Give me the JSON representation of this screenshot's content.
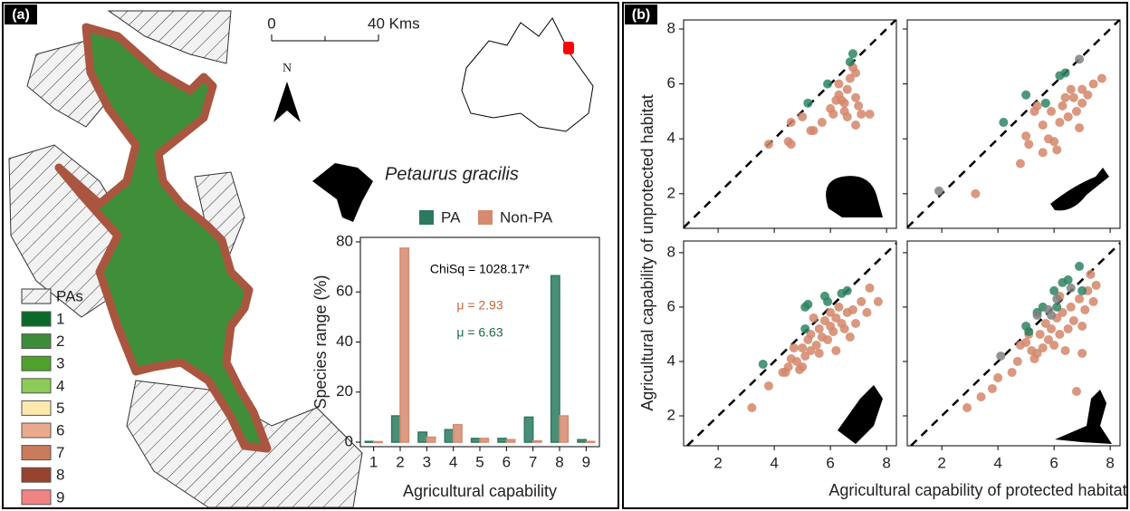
{
  "panel_a": {
    "label": "(a)",
    "scale_labels": [
      "0",
      "40 Kms"
    ],
    "north": "N",
    "legend_title": "PAs",
    "classes": [
      "1",
      "2",
      "3",
      "4",
      "5",
      "6",
      "7",
      "8",
      "9"
    ],
    "class_colors": [
      "#0b6a2a",
      "#3d8c3a",
      "#4fa12c",
      "#8bcb58",
      "#fbe9ad",
      "#e9ab8c",
      "#c97c5c",
      "#974330",
      "#f38383"
    ],
    "species": "Petaurus gracilis"
  },
  "panel_b": {
    "label": "(b)",
    "x_label": "Agricultural capability of protected habitat",
    "y_label": "Agricultural capability of unprotected habitat"
  },
  "chart_data": [
    {
      "type": "bar",
      "categories": [
        "1",
        "2",
        "3",
        "4",
        "5",
        "6",
        "7",
        "8",
        "9"
      ],
      "series": [
        {
          "name": "PA",
          "color": "#2b7a5f",
          "values": [
            0.3,
            10.5,
            4,
            5,
            1.5,
            1.5,
            10,
            66.5,
            1
          ]
        },
        {
          "name": "Non-PA",
          "color": "#d68a6f",
          "values": [
            0.2,
            77.5,
            2,
            7,
            1.5,
            1,
            0.5,
            10.5,
            0.3
          ]
        }
      ],
      "ylim": [
        -1.8,
        81.8
      ],
      "yticks": [
        0,
        20,
        40,
        60,
        80
      ],
      "x_label": "Agricultural capability",
      "y_label": "Species range (%)",
      "annotations": [
        {
          "text": "ChiSq = 1028.17*",
          "color": "#000000"
        },
        {
          "text": "μ = 2.93",
          "color": "#c8663f"
        },
        {
          "text": "μ = 6.63",
          "color": "#1e6b48"
        }
      ]
    },
    {
      "type": "scatter",
      "xlim": [
        0.77,
        8.35
      ],
      "ylim": [
        0.74,
        8.33
      ],
      "xticks": [
        2,
        4,
        6,
        8
      ],
      "yticks": [
        2,
        4,
        6,
        8
      ],
      "xtick_labels": false,
      "ytick_labels": true,
      "series": [
        {
          "color": "#d4866a",
          "x": [
            3.8,
            4.5,
            4.6,
            4.6,
            5.0,
            5.4,
            5.7,
            6.0,
            6.1,
            6.2,
            6.3,
            6.4,
            6.5,
            6.6,
            6.7,
            6.8,
            6.9,
            6.6,
            7.0,
            7.1,
            7.4,
            6.9,
            6.5,
            6.3,
            6.9,
            5.3
          ],
          "values": [
            3.8,
            3.9,
            3.8,
            4.6,
            4.8,
            4.3,
            4.6,
            5.1,
            4.9,
            5.4,
            5.6,
            5.4,
            5.0,
            5.8,
            6.2,
            6.6,
            6.4,
            4.8,
            5.2,
            4.9,
            4.9,
            4.5,
            5.3,
            6.0,
            5.5,
            4.3
          ]
        },
        {
          "color": "#2e8463",
          "x": [
            5.9,
            6.8,
            6.7,
            5.2
          ],
          "values": [
            6.0,
            7.1,
            6.8,
            5.3
          ]
        }
      ]
    },
    {
      "type": "scatter",
      "xlim": [
        0.77,
        8.35
      ],
      "ylim": [
        0.74,
        8.33
      ],
      "xticks": [
        2,
        4,
        6,
        8
      ],
      "yticks": [
        2,
        4,
        6,
        8
      ],
      "xtick_labels": false,
      "ytick_labels": false,
      "series": [
        {
          "color": "#d4866a",
          "x": [
            3.2,
            4.8,
            5.1,
            5.0,
            5.3,
            5.6,
            5.8,
            5.6,
            6.0,
            6.2,
            6.3,
            6.4,
            6.6,
            6.7,
            6.8,
            6.9,
            7.0,
            7.2,
            7.4,
            7.7,
            6.1,
            6.5,
            5.9,
            7.0,
            5.4
          ],
          "values": [
            2.0,
            3.1,
            3.8,
            4.1,
            5.0,
            4.5,
            4.0,
            3.5,
            3.9,
            4.6,
            5.2,
            5.5,
            5.8,
            5.5,
            5.0,
            4.4,
            5.8,
            5.6,
            6.0,
            6.2,
            3.6,
            4.8,
            5.0,
            5.3,
            5.2
          ]
        },
        {
          "color": "#2e8463",
          "x": [
            4.2,
            5.0,
            5.7,
            6.2,
            6.4
          ],
          "values": [
            4.6,
            5.6,
            5.3,
            6.3,
            6.4
          ]
        },
        {
          "color": "#808080",
          "x": [
            1.9,
            6.9
          ],
          "values": [
            2.1,
            6.9
          ]
        }
      ]
    },
    {
      "type": "scatter",
      "xlim": [
        0.77,
        8.35
      ],
      "ylim": [
        0.9,
        8.43
      ],
      "xticks": [
        2,
        4,
        6,
        8
      ],
      "yticks": [
        2,
        4,
        6,
        8
      ],
      "xtick_labels": true,
      "ytick_labels": true,
      "series": [
        {
          "color": "#d4866a",
          "x": [
            3.2,
            3.8,
            4.4,
            4.5,
            4.6,
            4.7,
            4.8,
            4.9,
            5.0,
            5.1,
            5.2,
            5.3,
            5.3,
            5.5,
            5.6,
            5.7,
            5.8,
            5.9,
            6.0,
            6.0,
            6.1,
            6.2,
            6.2,
            6.3,
            6.4,
            6.5,
            6.6,
            6.7,
            6.8,
            7.1,
            7.3,
            7.4,
            7.7,
            5.4,
            4.3,
            5.6,
            6.9,
            5.0
          ],
          "values": [
            2.3,
            3.1,
            3.6,
            3.8,
            4.1,
            4.5,
            4.0,
            3.7,
            4.5,
            4.2,
            4.8,
            4.4,
            5.0,
            4.6,
            5.2,
            4.9,
            5.5,
            4.8,
            5.3,
            5.8,
            5.1,
            5.6,
            4.4,
            6.0,
            5.4,
            5.2,
            5.8,
            4.9,
            5.9,
            6.2,
            5.8,
            6.7,
            6.2,
            5.6,
            3.6,
            4.3,
            5.4,
            3.8
          ]
        },
        {
          "color": "#2e8463",
          "x": [
            3.6,
            5.1,
            5.2,
            5.1,
            5.9,
            6.4,
            6.6,
            5.8
          ],
          "values": [
            3.9,
            6.0,
            6.1,
            5.2,
            6.2,
            6.5,
            6.6,
            6.4
          ]
        }
      ]
    },
    {
      "type": "scatter",
      "xlim": [
        0.77,
        8.35
      ],
      "ylim": [
        0.9,
        8.43
      ],
      "xticks": [
        2,
        4,
        6,
        8
      ],
      "yticks": [
        2,
        4,
        6,
        8
      ],
      "xtick_labels": true,
      "ytick_labels": false,
      "series": [
        {
          "color": "#d4866a",
          "x": [
            2.9,
            3.4,
            3.8,
            4.0,
            4.5,
            4.7,
            4.8,
            5.0,
            5.1,
            5.2,
            5.3,
            5.4,
            5.5,
            5.6,
            5.7,
            5.8,
            5.9,
            6.0,
            6.1,
            6.2,
            6.3,
            6.4,
            6.5,
            6.6,
            6.7,
            6.8,
            6.9,
            7.0,
            7.1,
            7.2,
            7.3,
            7.4,
            7.5,
            6.2,
            7.0
          ],
          "values": [
            2.3,
            2.7,
            3.0,
            3.4,
            3.6,
            4.0,
            4.6,
            4.7,
            5.0,
            4.4,
            4.1,
            4.3,
            5.0,
            4.5,
            5.4,
            4.8,
            5.2,
            4.6,
            5.6,
            5.0,
            5.8,
            4.4,
            5.2,
            6.0,
            5.5,
            2.9,
            6.3,
            5.3,
            5.9,
            6.6,
            7.2,
            6.2,
            6.8,
            6.4,
            4.3
          ]
        },
        {
          "color": "#2e8463",
          "x": [
            5.0,
            5.1,
            6.5,
            6.9,
            6.3,
            6.0,
            5.4,
            5.6,
            6.1,
            7.0
          ],
          "values": [
            5.3,
            5.1,
            7.0,
            7.5,
            6.9,
            6.6,
            5.8,
            6.0,
            6.0,
            6.6
          ]
        },
        {
          "color": "#808080",
          "x": [
            4.1,
            5.4,
            5.8,
            6.1,
            6.6,
            5.9
          ],
          "values": [
            4.2,
            5.7,
            5.9,
            6.3,
            6.7,
            5.7
          ]
        }
      ]
    }
  ]
}
